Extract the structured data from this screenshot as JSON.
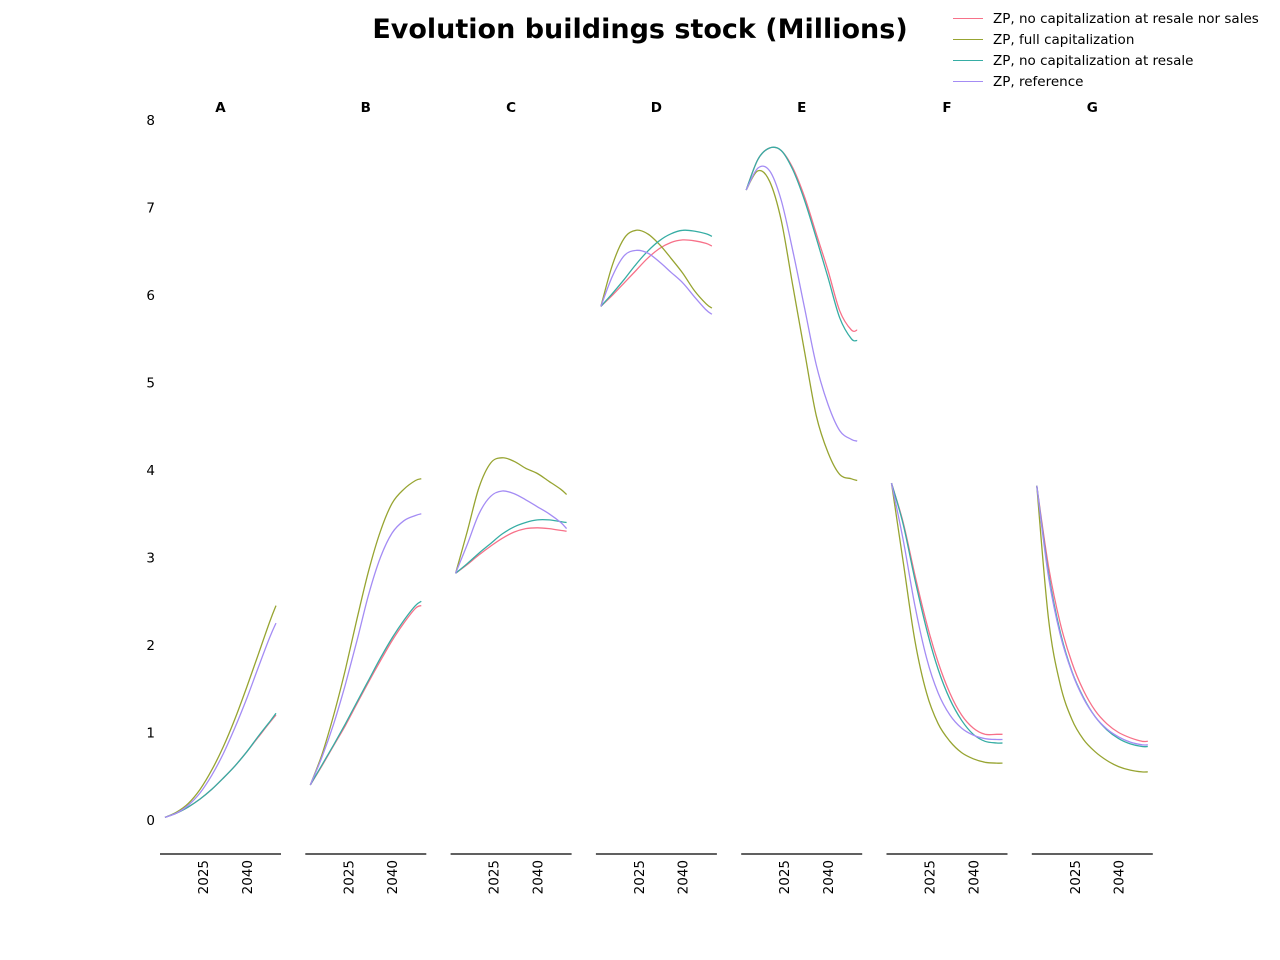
{
  "title": "Evolution buildings stock (Millions)",
  "legend": [
    {
      "label": "ZP, no capitalization at resale nor sales",
      "color": "#f77189"
    },
    {
      "label": "ZP, full capitalization",
      "color": "#97a431"
    },
    {
      "label": "ZP, no capitalization at resale",
      "color": "#36ada4"
    },
    {
      "label": "ZP, reference",
      "color": "#a48cf4"
    }
  ],
  "chart_data": {
    "type": "line",
    "title": "Evolution buildings stock (Millions)",
    "xlabel": "",
    "ylabel": "",
    "ylim": [
      0,
      8
    ],
    "yticks": [
      0,
      1,
      2,
      3,
      4,
      5,
      6,
      7,
      8
    ],
    "xticks": [
      2025,
      2040
    ],
    "x": [
      2012,
      2016,
      2020,
      2024,
      2028,
      2032,
      2036,
      2040,
      2044,
      2048,
      2050
    ],
    "grid": false,
    "legend_position": "upper right",
    "panels": [
      {
        "name": "A",
        "series": [
          {
            "name": "ZP, no capitalization at resale nor sales",
            "values": [
              0.03,
              0.08,
              0.15,
              0.24,
              0.35,
              0.48,
              0.62,
              0.78,
              0.95,
              1.12,
              1.2
            ]
          },
          {
            "name": "ZP, full capitalization",
            "values": [
              0.03,
              0.09,
              0.19,
              0.35,
              0.57,
              0.84,
              1.16,
              1.52,
              1.9,
              2.28,
              2.45
            ]
          },
          {
            "name": "ZP, no capitalization at resale",
            "values": [
              0.03,
              0.08,
              0.15,
              0.24,
              0.35,
              0.48,
              0.62,
              0.78,
              0.96,
              1.13,
              1.22
            ]
          },
          {
            "name": "ZP, reference",
            "values": [
              0.03,
              0.08,
              0.17,
              0.31,
              0.51,
              0.76,
              1.06,
              1.39,
              1.75,
              2.1,
              2.25
            ]
          }
        ]
      },
      {
        "name": "B",
        "series": [
          {
            "name": "ZP, no capitalization at resale nor sales",
            "values": [
              0.4,
              0.62,
              0.85,
              1.08,
              1.33,
              1.58,
              1.82,
              2.05,
              2.25,
              2.42,
              2.45
            ]
          },
          {
            "name": "ZP, full capitalization",
            "values": [
              0.4,
              0.75,
              1.2,
              1.72,
              2.3,
              2.85,
              3.3,
              3.62,
              3.78,
              3.88,
              3.9
            ]
          },
          {
            "name": "ZP, no capitalization at resale",
            "values": [
              0.4,
              0.63,
              0.86,
              1.1,
              1.35,
              1.6,
              1.85,
              2.08,
              2.28,
              2.45,
              2.5
            ]
          },
          {
            "name": "ZP, reference",
            "values": [
              0.4,
              0.72,
              1.1,
              1.55,
              2.05,
              2.58,
              3.0,
              3.28,
              3.42,
              3.48,
              3.5
            ]
          }
        ]
      },
      {
        "name": "C",
        "series": [
          {
            "name": "ZP, no capitalization at resale nor sales",
            "values": [
              2.82,
              2.92,
              3.03,
              3.13,
              3.22,
              3.29,
              3.33,
              3.34,
              3.33,
              3.31,
              3.3
            ]
          },
          {
            "name": "ZP, full capitalization",
            "values": [
              2.82,
              3.3,
              3.8,
              4.08,
              4.14,
              4.1,
              4.02,
              3.96,
              3.87,
              3.78,
              3.72
            ]
          },
          {
            "name": "ZP, no capitalization at resale",
            "values": [
              2.82,
              2.93,
              3.05,
              3.16,
              3.27,
              3.35,
              3.4,
              3.43,
              3.43,
              3.41,
              3.4
            ]
          },
          {
            "name": "ZP, reference",
            "values": [
              2.82,
              3.15,
              3.5,
              3.7,
              3.76,
              3.73,
              3.66,
              3.58,
              3.5,
              3.4,
              3.33
            ]
          }
        ]
      },
      {
        "name": "D",
        "series": [
          {
            "name": "ZP, no capitalization at resale nor sales",
            "values": [
              5.87,
              6.0,
              6.14,
              6.28,
              6.42,
              6.53,
              6.6,
              6.63,
              6.62,
              6.59,
              6.56
            ]
          },
          {
            "name": "ZP, full capitalization",
            "values": [
              5.87,
              6.35,
              6.65,
              6.74,
              6.7,
              6.58,
              6.42,
              6.25,
              6.05,
              5.9,
              5.85
            ]
          },
          {
            "name": "ZP, no capitalization at resale",
            "values": [
              5.87,
              6.02,
              6.18,
              6.35,
              6.5,
              6.62,
              6.7,
              6.74,
              6.73,
              6.7,
              6.67
            ]
          },
          {
            "name": "ZP, reference",
            "values": [
              5.87,
              6.22,
              6.45,
              6.51,
              6.48,
              6.38,
              6.26,
              6.14,
              5.98,
              5.83,
              5.78
            ]
          }
        ]
      },
      {
        "name": "E",
        "series": [
          {
            "name": "ZP, no capitalization at resale nor sales",
            "values": [
              7.2,
              7.55,
              7.68,
              7.65,
              7.45,
              7.12,
              6.7,
              6.28,
              5.82,
              5.6,
              5.6
            ]
          },
          {
            "name": "ZP, full capitalization",
            "values": [
              7.2,
              7.42,
              7.3,
              6.85,
              6.1,
              5.35,
              4.62,
              4.2,
              3.95,
              3.9,
              3.88
            ]
          },
          {
            "name": "ZP, no capitalization at resale",
            "values": [
              7.2,
              7.55,
              7.68,
              7.65,
              7.43,
              7.08,
              6.65,
              6.2,
              5.74,
              5.5,
              5.48
            ]
          },
          {
            "name": "ZP, reference",
            "values": [
              7.2,
              7.45,
              7.42,
              7.08,
              6.5,
              5.85,
              5.2,
              4.75,
              4.45,
              4.35,
              4.33
            ]
          }
        ]
      },
      {
        "name": "F",
        "series": [
          {
            "name": "ZP, no capitalization at resale nor sales",
            "values": [
              3.85,
              3.4,
              2.8,
              2.25,
              1.8,
              1.45,
              1.2,
              1.05,
              0.98,
              0.98,
              0.98
            ]
          },
          {
            "name": "ZP, full capitalization",
            "values": [
              3.85,
              2.95,
              2.05,
              1.45,
              1.1,
              0.9,
              0.77,
              0.7,
              0.66,
              0.65,
              0.65
            ]
          },
          {
            "name": "ZP, no capitalization at resale",
            "values": [
              3.85,
              3.38,
              2.75,
              2.18,
              1.72,
              1.38,
              1.14,
              0.98,
              0.9,
              0.88,
              0.88
            ]
          },
          {
            "name": "ZP, reference",
            "values": [
              3.85,
              3.2,
              2.45,
              1.85,
              1.45,
              1.2,
              1.05,
              0.97,
              0.93,
              0.92,
              0.92
            ]
          }
        ]
      },
      {
        "name": "G",
        "series": [
          {
            "name": "ZP, no capitalization at resale nor sales",
            "values": [
              3.82,
              2.9,
              2.25,
              1.8,
              1.48,
              1.25,
              1.1,
              1.0,
              0.94,
              0.9,
              0.9
            ]
          },
          {
            "name": "ZP, full capitalization",
            "values": [
              3.82,
              2.3,
              1.55,
              1.15,
              0.92,
              0.78,
              0.68,
              0.61,
              0.57,
              0.55,
              0.55
            ]
          },
          {
            "name": "ZP, no capitalization at resale",
            "values": [
              3.82,
              2.82,
              2.15,
              1.7,
              1.4,
              1.18,
              1.03,
              0.93,
              0.87,
              0.84,
              0.84
            ]
          },
          {
            "name": "ZP, reference",
            "values": [
              3.82,
              2.78,
              2.12,
              1.69,
              1.39,
              1.18,
              1.04,
              0.95,
              0.89,
              0.86,
              0.86
            ]
          }
        ]
      }
    ]
  }
}
